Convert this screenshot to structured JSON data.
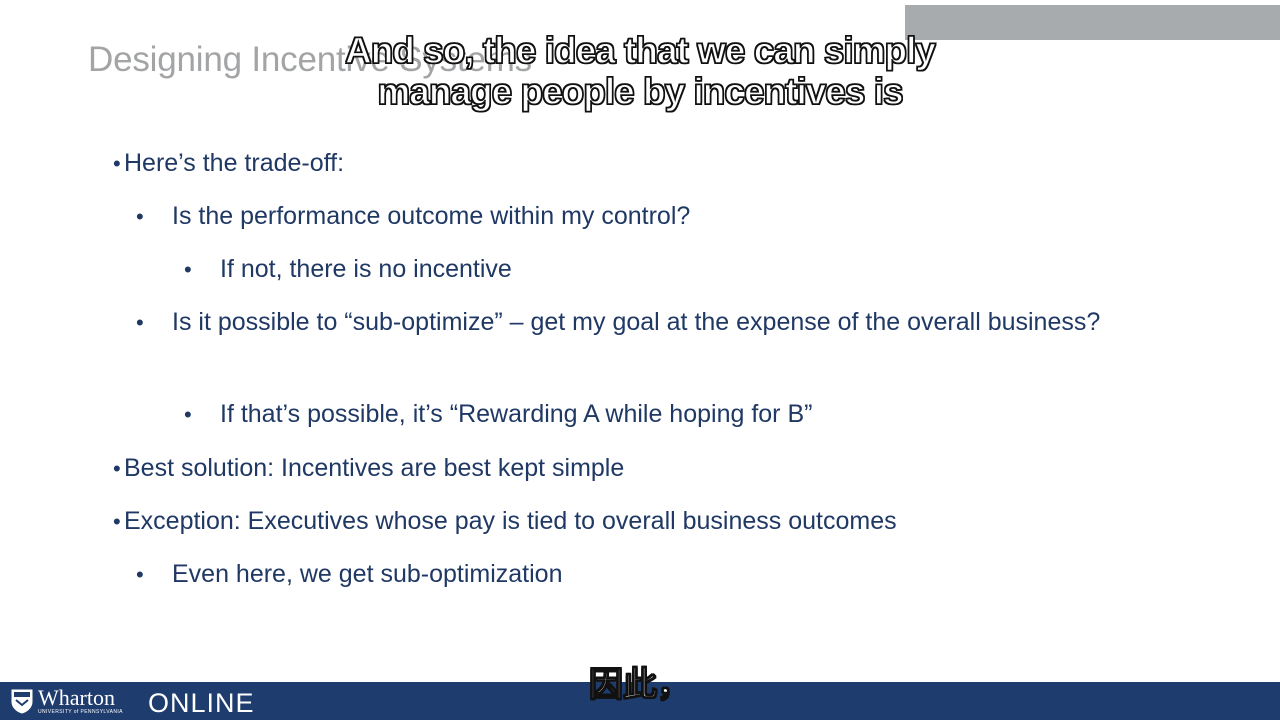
{
  "slide": {
    "title": "Designing Incentive Systems",
    "bullets": [
      {
        "text": "Here’s the trade-off:"
      },
      {
        "text": "Is the performance outcome within my control?"
      },
      {
        "text": "If not, there is no incentive"
      },
      {
        "text": "Is it possible to “sub-optimize” – get my goal at the expense of the overall business?"
      },
      {
        "text": "If that’s possible, it’s “Rewarding A while hoping for B”"
      },
      {
        "text": "Best solution: Incentives are best kept simple"
      },
      {
        "text": "Exception: Executives whose pay is tied to overall business outcomes"
      },
      {
        "text": "Even here, we get sub-optimization"
      }
    ]
  },
  "captions": {
    "english": "And so, the idea that we can simply\nmanage people by incentives is",
    "chinese": "因此，"
  },
  "footer": {
    "logo_name": "Wharton",
    "logo_sub": "UNIVERSITY of PENNSYLVANIA",
    "online_label": "ONLINE"
  },
  "colors": {
    "bullet_text": "#1f3864",
    "title": "#a2a4a6",
    "footer_bg": "#1e3c6e",
    "top_bar": "#a8abae"
  }
}
